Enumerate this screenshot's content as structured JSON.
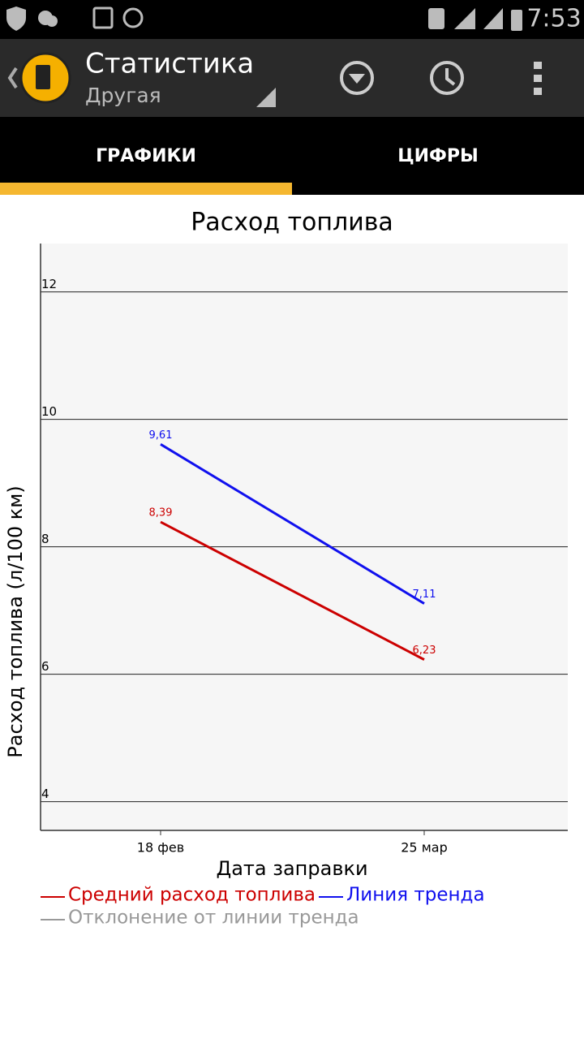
{
  "status_bar": {
    "time": "7:53"
  },
  "app_bar": {
    "title": "Статистика",
    "subtitle": "Другая"
  },
  "tabs": [
    "ГРАФИКИ",
    "ЦИФРЫ"
  ],
  "chart_data": {
    "type": "line",
    "title": "Расход топлива",
    "xlabel": "Дата заправки",
    "ylabel": "Расход топлива (л/100 км)",
    "categories": [
      "18 фев",
      "25 мар"
    ],
    "series": [
      {
        "name": "Средний расход топлива",
        "color": "#cc0000",
        "values": [
          8.39,
          6.23
        ],
        "value_labels": [
          "8,39",
          "6,23"
        ]
      },
      {
        "name": "Линия тренда",
        "color": "#1010ee",
        "values": [
          9.61,
          7.11
        ],
        "value_labels": [
          "9,61",
          "7,11"
        ]
      },
      {
        "name": "Отклонение от линии тренда",
        "color": "#999999",
        "values": [
          null,
          null
        ]
      }
    ],
    "ylim": [
      3.55,
      12.76
    ],
    "yticks": [
      4,
      6,
      8,
      10,
      12
    ],
    "grid": true
  }
}
